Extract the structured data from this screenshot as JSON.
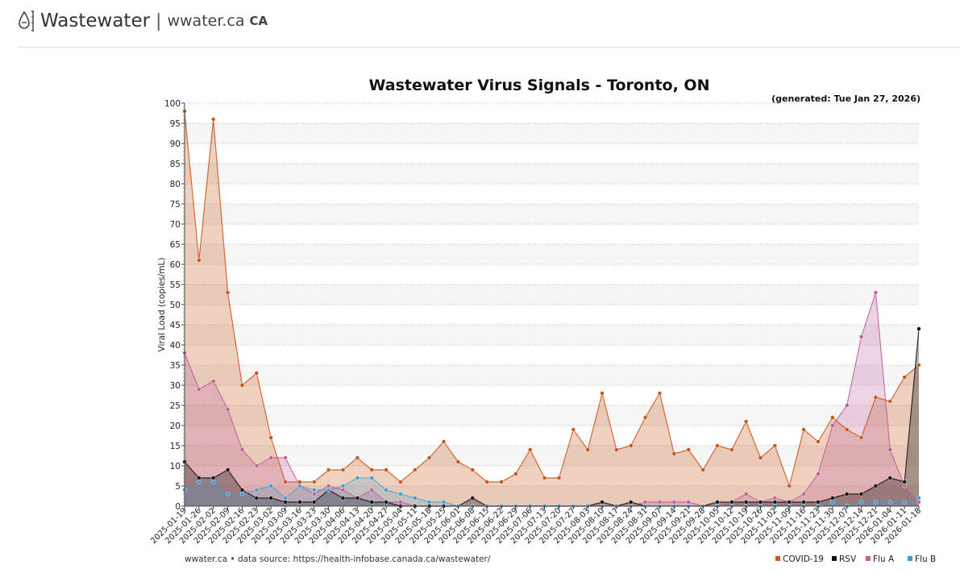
{
  "site": {
    "brand": "Wastewater",
    "separator": "|",
    "domain": "wwater.ca",
    "country": "CA"
  },
  "icons": {
    "logo": "water-drop-icon"
  },
  "colors": {
    "covid": "#c8561a",
    "rsv": "#111111",
    "flua": "#c0609a",
    "flub": "#3c9ed0"
  },
  "chart_data": {
    "type": "area",
    "title": "Wastewater Virus Signals - Toronto, ON",
    "generated": "(generated: Tue Jan 27, 2026)",
    "xlabel": "",
    "ylabel": "Viral Load (copies/mL)",
    "ylim": [
      0,
      100
    ],
    "yticks": [
      0,
      5,
      10,
      15,
      20,
      25,
      30,
      35,
      40,
      45,
      50,
      55,
      60,
      65,
      70,
      75,
      80,
      85,
      90,
      95,
      100
    ],
    "grid": true,
    "legend_position": "bottom-right",
    "footer": "wwater.ca • data source: https://health-infobase.canada.ca/wastewater/",
    "tick_labels": [
      "2025-01-19",
      "2025-01-26",
      "2025-02-02",
      "2025-02-09",
      "2025-02-16",
      "2025-02-23",
      "2025-03-02",
      "2025-03-09",
      "2025-03-16",
      "2025-03-23",
      "2025-03-30",
      "2025-04-06",
      "2025-04-13",
      "2025-04-20",
      "2025-04-27",
      "2025-05-04",
      "2025-05-11",
      "2025-05-18",
      "2025-05-25",
      "2025-06-01",
      "2025-06-08",
      "2025-06-15",
      "2025-06-22",
      "2025-06-29",
      "2025-07-06",
      "2025-07-13",
      "2025-07-20",
      "2025-07-27",
      "2025-08-03",
      "2025-08-10",
      "2025-08-17",
      "2025-08-24",
      "2025-08-31",
      "2025-09-07",
      "2025-09-14",
      "2025-09-21",
      "2025-09-28",
      "2025-10-05",
      "2025-10-12",
      "2025-10-19",
      "2025-10-26",
      "2025-11-02",
      "2025-11-09",
      "2025-11-16",
      "2025-11-23",
      "2025-11-30",
      "2025-12-07",
      "2025-12-14",
      "2025-12-21",
      "2026-01-04",
      "2026-01-11",
      "2026-01-18"
    ],
    "x": [
      0,
      1,
      2,
      3,
      4,
      5,
      6,
      7,
      8,
      9,
      10,
      11,
      12,
      13,
      14,
      15,
      16,
      17,
      18,
      19,
      20,
      21,
      22,
      23,
      24,
      25,
      26,
      27,
      28,
      29,
      30,
      31,
      32,
      33,
      34,
      35,
      36,
      37,
      38,
      39,
      40,
      41,
      42,
      43,
      44,
      45,
      46,
      47,
      48,
      49,
      50,
      51
    ],
    "series": [
      {
        "name": "COVID-19",
        "key": "covid",
        "values": [
          98,
          61,
          96,
          53,
          30,
          33,
          17,
          6,
          6,
          6,
          9,
          9,
          12,
          9,
          9,
          6,
          9,
          12,
          16,
          11,
          9,
          6,
          6,
          8,
          14,
          7,
          7,
          19,
          14,
          28,
          14,
          15,
          22,
          28,
          13,
          14,
          9,
          15,
          14,
          21,
          12,
          15,
          5,
          19,
          16,
          22,
          19,
          17,
          27,
          26,
          32,
          35
        ]
      },
      {
        "name": "Flu A",
        "key": "flua",
        "values": [
          38,
          29,
          31,
          24,
          14,
          10,
          12,
          12,
          5,
          3,
          5,
          4,
          2,
          4,
          1,
          1,
          0,
          0,
          0,
          0,
          0,
          0,
          0,
          0,
          0,
          0,
          0,
          0,
          0,
          0,
          0,
          0,
          1,
          1,
          1,
          1,
          0,
          0,
          1,
          3,
          1,
          2,
          1,
          3,
          8,
          20,
          25,
          42,
          53,
          14,
          5,
          1
        ]
      },
      {
        "name": "RSV",
        "key": "rsv",
        "values": [
          11,
          7,
          7,
          9,
          4,
          2,
          2,
          1,
          1,
          1,
          4,
          2,
          2,
          1,
          1,
          0,
          0,
          0,
          0,
          0,
          2,
          0,
          0,
          0,
          0,
          0,
          0,
          0,
          0,
          1,
          0,
          1,
          0,
          0,
          0,
          0,
          0,
          1,
          1,
          1,
          1,
          1,
          1,
          1,
          1,
          2,
          3,
          3,
          5,
          7,
          6,
          44
        ]
      },
      {
        "name": "Flu B",
        "key": "flub",
        "values": [
          4,
          6,
          6,
          3,
          3,
          4,
          5,
          2,
          5,
          4,
          4,
          5,
          7,
          7,
          4,
          3,
          2,
          1,
          1,
          0,
          0,
          0,
          0,
          0,
          0,
          0,
          0,
          0,
          0,
          0,
          0,
          0,
          0,
          0,
          0,
          0,
          0,
          0,
          0,
          0,
          0,
          0,
          0,
          0,
          0,
          1,
          0,
          1,
          1,
          1,
          1,
          2
        ]
      }
    ]
  }
}
